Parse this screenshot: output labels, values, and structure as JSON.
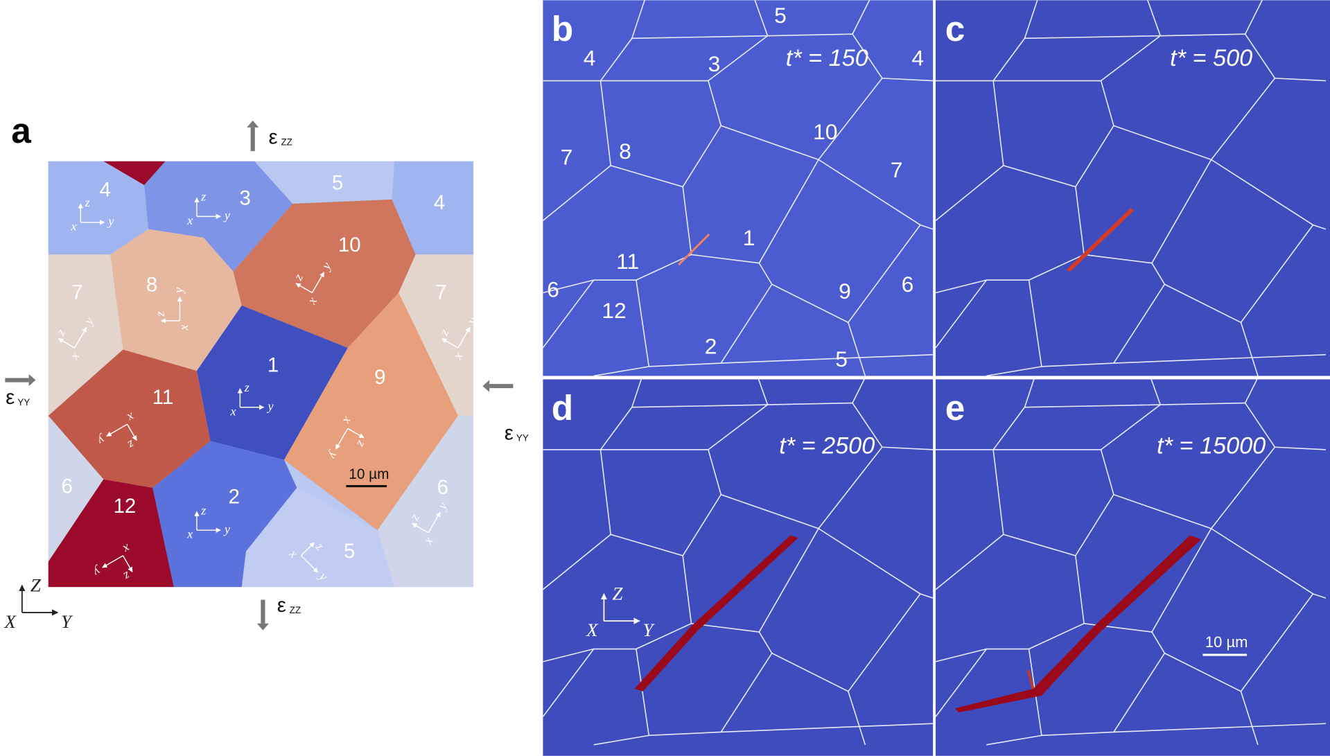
{
  "panel_a": {
    "label": "a",
    "grain_numbers": [
      "4",
      "3",
      "5",
      "4",
      "10",
      "7",
      "8",
      "7",
      "1",
      "11",
      "9",
      "6",
      "12",
      "2",
      "6",
      "5"
    ],
    "strain": {
      "symbol": "ε",
      "zz": "ZZ",
      "yy": "YY"
    },
    "local_axes": [
      "x",
      "y",
      "z"
    ],
    "global_axes": [
      "Z",
      "X",
      "Y"
    ],
    "scale_bar": "10 µm"
  },
  "panel_b": {
    "label": "b",
    "time": "t* = 150",
    "grain_numbers": [
      "5",
      "4",
      "3",
      "4",
      "10",
      "7",
      "8",
      "7",
      "1",
      "11",
      "6",
      "12",
      "9",
      "6",
      "2",
      "5"
    ]
  },
  "panel_c": {
    "label": "c",
    "time": "t* = 500"
  },
  "panel_d": {
    "label": "d",
    "time": "t* = 2500",
    "global_axes": [
      "Z",
      "X",
      "Y"
    ]
  },
  "panel_e": {
    "label": "e",
    "time": "t* = 15000",
    "scale_bar": "10 µm"
  }
}
